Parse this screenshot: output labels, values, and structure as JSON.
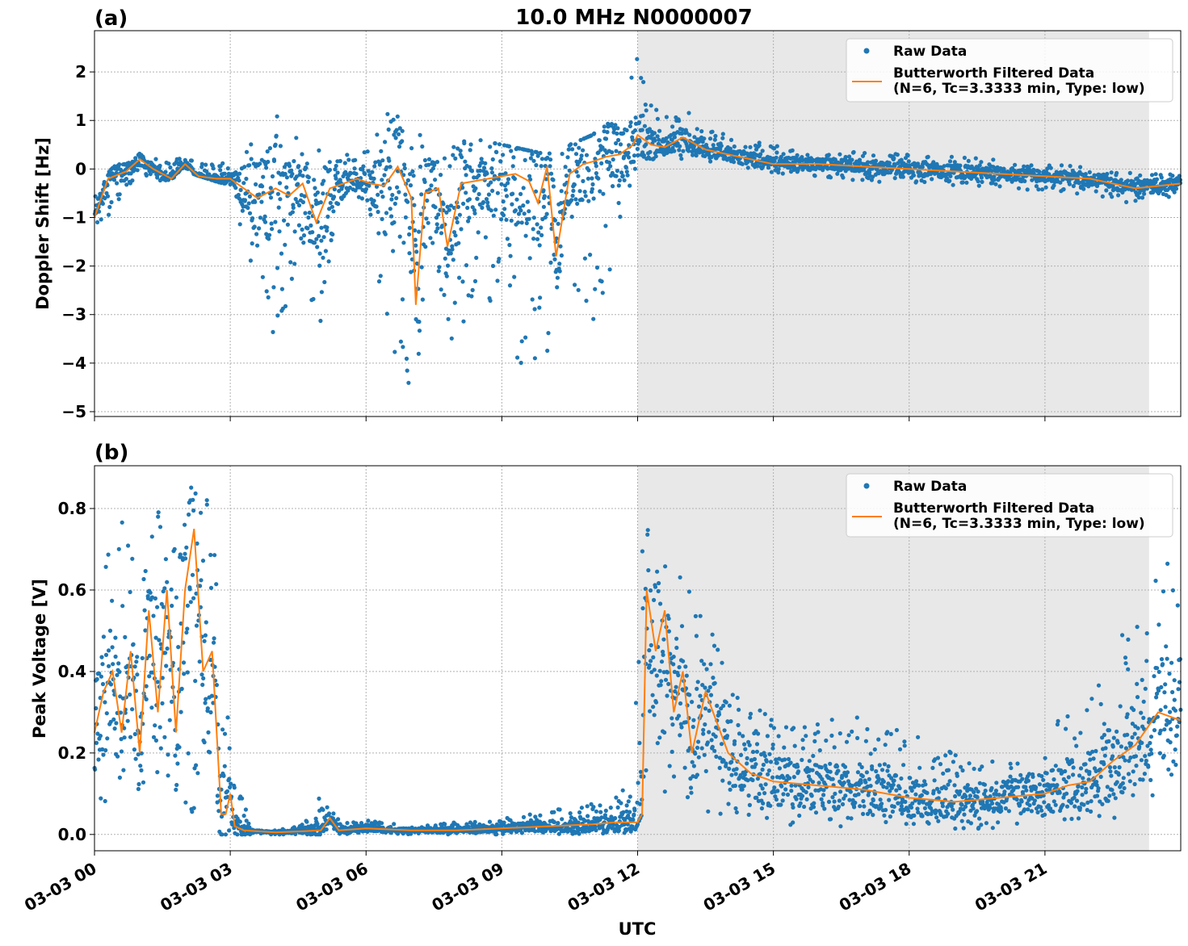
{
  "title": "10.0 MHz N0000007",
  "xlabel": "UTC",
  "x_ticks": [
    "03-03 00",
    "03-03 03",
    "03-03 06",
    "03-03 09",
    "03-03 12",
    "03-03 15",
    "03-03 18",
    "03-03 21"
  ],
  "legend": {
    "raw": "Raw Data",
    "filtered_line1": "Butterworth Filtered Data",
    "filtered_line2": "(N=6, Tc=3.3333 min, Type: low)"
  },
  "colors": {
    "raw": "#1f77b4",
    "filtered": "#ff7f0e",
    "shade": "#e8e8e8"
  },
  "chart_data": [
    {
      "panel": "(a)",
      "type": "scatter",
      "ylabel": "Doppler Shift [Hz]",
      "xlim_hours": [
        0,
        24
      ],
      "ylim": [
        -5.1,
        2.85
      ],
      "y_ticks": [
        "2",
        "1",
        "0",
        "−1",
        "−2",
        "−3",
        "−4",
        "−5"
      ],
      "y_tick_values": [
        2,
        1,
        0,
        -1,
        -2,
        -3,
        -4,
        -5
      ],
      "shaded_hours": [
        12,
        23.3
      ],
      "grid": true,
      "legend_placement": "top-right",
      "series": [
        {
          "name": "Raw Data",
          "kind": "points",
          "x": [
            0,
            0.5,
            1,
            1.5,
            2,
            2.5,
            3,
            3.5,
            4,
            4.5,
            5,
            5.5,
            6,
            6.5,
            7,
            7.5,
            8,
            8.5,
            9,
            9.5,
            10,
            10.5,
            11,
            11.5,
            12,
            12.5,
            13,
            13.5,
            14,
            15,
            16,
            17,
            18,
            19,
            20,
            21,
            22,
            23,
            24
          ],
          "y_low": [
            -1.25,
            -0.9,
            -0.1,
            -0.3,
            -0.05,
            -0.2,
            -0.35,
            -2.3,
            -3.75,
            -2.0,
            -3.4,
            -0.8,
            -0.6,
            -4.0,
            -4.7,
            -2.0,
            -4.1,
            -2.0,
            -3.5,
            -4.4,
            -4.7,
            -2.3,
            -3.5,
            -1.8,
            -0.1,
            0.3,
            0.2,
            0.15,
            0.05,
            -0.1,
            -0.15,
            -0.25,
            -0.3,
            -0.35,
            -0.4,
            -0.45,
            -0.55,
            -0.75,
            -0.55
          ],
          "y_high": [
            -0.3,
            0.1,
            0.4,
            0.15,
            0.25,
            0.1,
            0.2,
            0.8,
            1.25,
            0.6,
            0.5,
            0.4,
            0.35,
            1.2,
            0.9,
            0.5,
            0.6,
            0.6,
            0.5,
            0.4,
            0.3,
            0.5,
            0.7,
            1.1,
            2.5,
            1.0,
            1.25,
            0.9,
            0.7,
            0.5,
            0.4,
            0.35,
            0.3,
            0.25,
            0.2,
            0.1,
            0.05,
            -0.1,
            -0.1
          ]
        },
        {
          "name": "Butterworth Filtered Data (N=6, Tc=3.3333 min, Type: low)",
          "kind": "line",
          "x": [
            0,
            0.3,
            0.7,
            1,
            1.3,
            1.7,
            2,
            2.3,
            2.7,
            3,
            3.3,
            3.6,
            4,
            4.3,
            4.6,
            4.9,
            5.2,
            5.5,
            5.8,
            6.1,
            6.4,
            6.7,
            7,
            7.1,
            7.3,
            7.6,
            7.8,
            8.1,
            8.4,
            8.7,
            9,
            9.3,
            9.6,
            9.8,
            10,
            10.2,
            10.5,
            10.8,
            11,
            11.3,
            11.6,
            11.9,
            12,
            12.3,
            12.6,
            13,
            13.5,
            14,
            14.5,
            15,
            16,
            17,
            18,
            19,
            20,
            21,
            22,
            22.5,
            23,
            23.5,
            24
          ],
          "y": [
            -1.0,
            -0.2,
            -0.05,
            0.2,
            0.0,
            -0.2,
            0.1,
            -0.15,
            -0.2,
            -0.2,
            -0.4,
            -0.6,
            -0.4,
            -0.55,
            -0.3,
            -1.1,
            -0.4,
            -0.3,
            -0.2,
            -0.3,
            -0.35,
            0.05,
            -0.6,
            -2.8,
            -0.5,
            -0.4,
            -1.6,
            -0.3,
            -0.25,
            -0.2,
            -0.15,
            -0.1,
            -0.25,
            -0.7,
            0.05,
            -1.8,
            -0.1,
            0.1,
            0.15,
            0.25,
            0.3,
            0.5,
            0.7,
            0.5,
            0.45,
            0.65,
            0.4,
            0.3,
            0.2,
            0.1,
            0.1,
            0.05,
            0.0,
            -0.05,
            -0.1,
            -0.15,
            -0.2,
            -0.3,
            -0.4,
            -0.35,
            -0.3
          ]
        }
      ]
    },
    {
      "panel": "(b)",
      "type": "scatter",
      "ylabel": "Peak Voltage [V]",
      "xlim_hours": [
        0,
        24
      ],
      "ylim": [
        -0.04,
        0.905
      ],
      "y_ticks": [
        "0.8",
        "0.6",
        "0.4",
        "0.2",
        "0.0"
      ],
      "y_tick_values": [
        0.8,
        0.6,
        0.4,
        0.2,
        0.0
      ],
      "shaded_hours": [
        12,
        23.3
      ],
      "grid": true,
      "legend_placement": "top-right",
      "series": [
        {
          "name": "Raw Data",
          "kind": "points",
          "x": [
            0,
            0.5,
            1,
            1.5,
            2,
            2.5,
            2.8,
            3,
            3.5,
            4,
            4.5,
            5,
            5.5,
            6,
            7,
            8,
            9,
            10,
            10.5,
            11,
            11.5,
            11.9,
            12.1,
            12.5,
            13,
            13.5,
            14,
            15,
            16,
            17,
            18,
            19,
            20,
            21,
            22,
            23,
            24
          ],
          "y_low": [
            0.1,
            0.05,
            0.03,
            0.05,
            0.04,
            0.05,
            0.0,
            0.0,
            0.0,
            0.0,
            0.0,
            0.0,
            0.0,
            0.0,
            0.0,
            0.0,
            0.0,
            0.0,
            0.0,
            0.0,
            0.0,
            0.0,
            0.05,
            0.05,
            0.08,
            0.05,
            0.04,
            0.02,
            0.02,
            0.02,
            0.02,
            0.01,
            0.01,
            0.02,
            0.03,
            0.04,
            0.05
          ],
          "y_high": [
            0.55,
            0.8,
            0.75,
            0.8,
            0.87,
            0.85,
            0.6,
            0.18,
            0.01,
            0.01,
            0.02,
            0.1,
            0.03,
            0.04,
            0.02,
            0.03,
            0.04,
            0.06,
            0.07,
            0.08,
            0.1,
            0.12,
            0.85,
            0.8,
            0.67,
            0.55,
            0.4,
            0.3,
            0.28,
            0.3,
            0.25,
            0.2,
            0.18,
            0.25,
            0.35,
            0.55,
            0.75
          ]
        },
        {
          "name": "Butterworth Filtered Data (N=6, Tc=3.3333 min, Type: low)",
          "kind": "line",
          "x": [
            0,
            0.2,
            0.4,
            0.6,
            0.8,
            1,
            1.2,
            1.4,
            1.6,
            1.8,
            2,
            2.2,
            2.4,
            2.6,
            2.8,
            2.9,
            3.0,
            3.1,
            3.3,
            4,
            5,
            5.2,
            5.4,
            6,
            7,
            8,
            9,
            10,
            11,
            11.5,
            12,
            12.1,
            12.2,
            12.4,
            12.6,
            12.8,
            13,
            13.2,
            13.5,
            14,
            14.5,
            15,
            16,
            17,
            18,
            19,
            20,
            21,
            21.5,
            22,
            22.5,
            23,
            23.5,
            24
          ],
          "y": [
            0.25,
            0.35,
            0.4,
            0.25,
            0.45,
            0.2,
            0.55,
            0.3,
            0.6,
            0.25,
            0.6,
            0.75,
            0.4,
            0.45,
            0.05,
            0.05,
            0.1,
            0.02,
            0.01,
            0.005,
            0.01,
            0.04,
            0.01,
            0.015,
            0.01,
            0.01,
            0.015,
            0.02,
            0.025,
            0.03,
            0.03,
            0.05,
            0.6,
            0.45,
            0.55,
            0.3,
            0.4,
            0.2,
            0.35,
            0.2,
            0.15,
            0.13,
            0.12,
            0.11,
            0.09,
            0.08,
            0.09,
            0.1,
            0.12,
            0.13,
            0.18,
            0.22,
            0.3,
            0.28
          ]
        }
      ]
    }
  ]
}
